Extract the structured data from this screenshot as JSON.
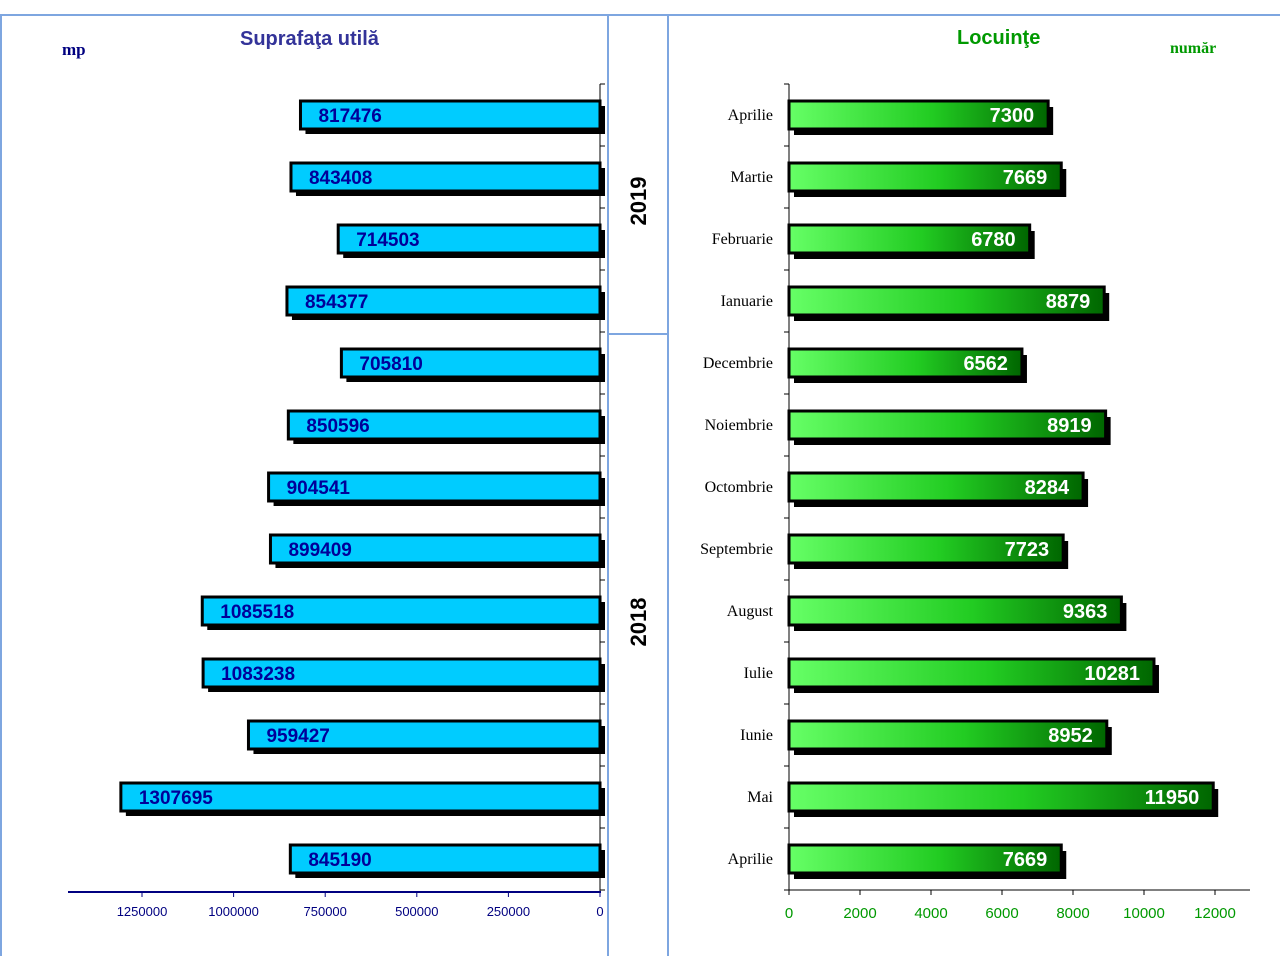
{
  "left_panel": {
    "title": "Suprafaţa utilă",
    "unit": "mp"
  },
  "right_panel": {
    "title": "Locuinţe",
    "unit": "număr"
  },
  "year_labels": [
    "2019",
    "2018"
  ],
  "colors": {
    "left_bar": "#00ccff",
    "left_label": "#000099",
    "left_axis": "#000080",
    "right_bar_light": "#66ff66",
    "right_bar_dark": "#006600",
    "right_label": "#ffffff",
    "right_axis_text": "#009900",
    "separator": "#7ea6e0"
  },
  "chart_data": [
    {
      "type": "bar",
      "orientation": "horizontal",
      "direction": "right-to-left",
      "title": "Suprafaţa utilă",
      "ylabel": "mp",
      "categories": [
        "Aprilie 2019",
        "Martie 2019",
        "Februarie 2019",
        "Ianuarie 2019",
        "Decembrie 2018",
        "Noiembrie 2018",
        "Octombrie 2018",
        "Septembrie 2018",
        "August 2018",
        "Iulie 2018",
        "Iunie 2018",
        "Mai 2018",
        "Aprilie 2018"
      ],
      "values": [
        817476,
        843408,
        714503,
        854377,
        705810,
        850596,
        904541,
        899409,
        1085518,
        1083238,
        959427,
        1307695,
        845190
      ],
      "xlim": [
        0,
        1250000
      ],
      "ticks": [
        "1250000",
        "1000000",
        "750000",
        "500000",
        "250000",
        "0"
      ]
    },
    {
      "type": "bar",
      "orientation": "horizontal",
      "title": "Locuinţe",
      "ylabel": "număr",
      "categories": [
        "Aprilie",
        "Martie",
        "Februarie",
        "Ianuarie",
        "Decembrie",
        "Noiembrie",
        "Octombrie",
        "Septembrie",
        "August",
        "Iulie",
        "Iunie",
        "Mai",
        "Aprilie"
      ],
      "values": [
        7300,
        7669,
        6780,
        8879,
        6562,
        8919,
        8284,
        7723,
        9363,
        10281,
        8952,
        11950,
        7669
      ],
      "xlim": [
        0,
        12000
      ],
      "ticks": [
        "0",
        "2000",
        "4000",
        "6000",
        "8000",
        "10000",
        "12000"
      ]
    }
  ]
}
